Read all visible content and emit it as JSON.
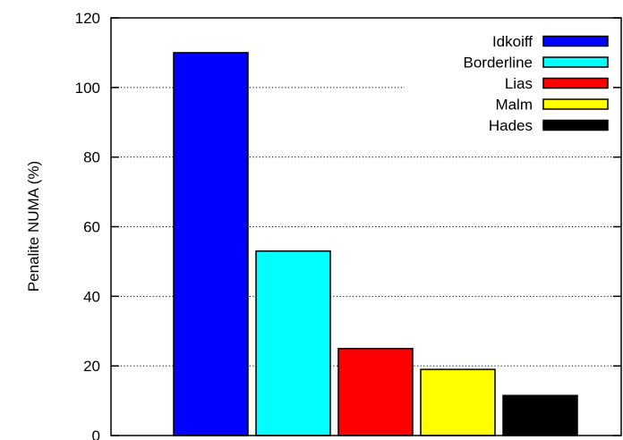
{
  "chart_data": {
    "type": "bar",
    "title": "",
    "xlabel": "",
    "ylabel": "Penalite NUMA (%)",
    "ylim": [
      0,
      120
    ],
    "yticks": [
      0,
      20,
      40,
      60,
      80,
      100,
      120
    ],
    "grid": true,
    "legend_position": "top-right",
    "series": [
      {
        "name": "Idkoiff",
        "value": 110,
        "color": "#0000ff"
      },
      {
        "name": "Borderline",
        "value": 53,
        "color": "#00ffff"
      },
      {
        "name": "Lias",
        "value": 25,
        "color": "#ff0000"
      },
      {
        "name": "Malm",
        "value": 19,
        "color": "#ffff00"
      },
      {
        "name": "Hades",
        "value": 11.5,
        "color": "#000000"
      }
    ]
  }
}
